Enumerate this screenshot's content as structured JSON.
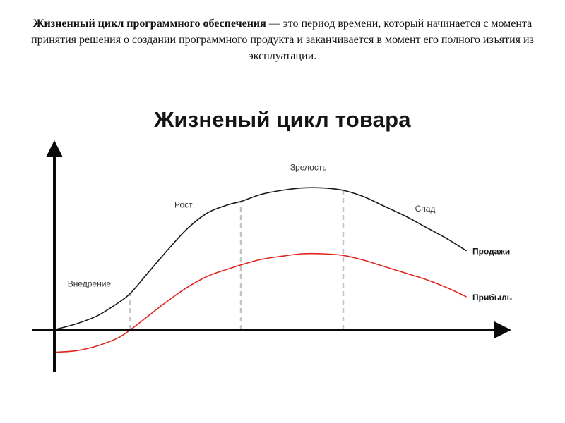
{
  "intro": {
    "term": "Жизненный цикл программного обеспечения",
    "text": " — это период времени, который начинается с момента принятия решения о создании программного продукта и заканчивается в момент его полного изъятия из эксплуатации."
  },
  "chart_data": {
    "type": "line",
    "title": "Жизненый цикл товара",
    "xlabel": "",
    "ylabel": "",
    "grid": false,
    "stages": [
      {
        "label": "Внедрение",
        "end": 18
      },
      {
        "label": "Рост",
        "end": 45
      },
      {
        "label": "Зрелость",
        "end": 70
      },
      {
        "label": "Спад",
        "end": 100
      }
    ],
    "series": [
      {
        "name": "Продажи",
        "color": "#1a1a1a",
        "x": [
          0,
          5,
          10,
          15,
          18,
          22,
          27,
          32,
          37,
          42,
          45,
          50,
          55,
          60,
          65,
          70,
          75,
          80,
          85,
          90,
          95,
          100
        ],
        "y": [
          0.5,
          4,
          9,
          17,
          23,
          35,
          50,
          64,
          74,
          79,
          81,
          85.5,
          88,
          89.5,
          89.5,
          88,
          84,
          78,
          72,
          65,
          58,
          50
        ]
      },
      {
        "name": "Прибыль",
        "color": "#e0271f",
        "x": [
          0,
          5,
          10,
          15,
          18,
          22,
          27,
          32,
          37,
          42,
          45,
          50,
          55,
          60,
          65,
          70,
          75,
          80,
          85,
          90,
          95,
          100
        ],
        "y": [
          -14,
          -13,
          -10,
          -5,
          0,
          8,
          18,
          27,
          34,
          38.5,
          41,
          44.5,
          46.5,
          48,
          48,
          47,
          44,
          40,
          36,
          32,
          27,
          21
        ]
      }
    ]
  }
}
